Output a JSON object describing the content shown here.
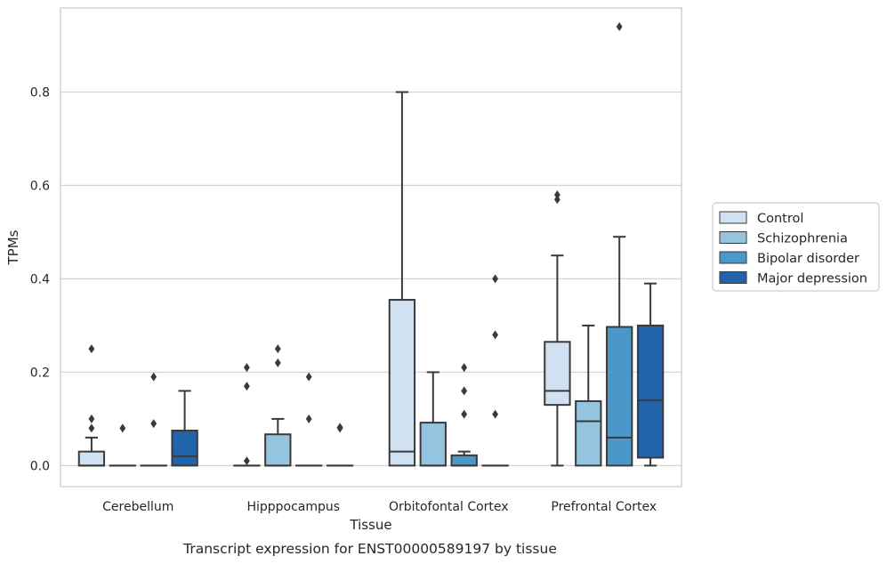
{
  "caption": "Transcript expression for ENST00000589197 by tissue",
  "chart_data": {
    "type": "box",
    "xlabel": "Tissue",
    "ylabel": "TPMs",
    "ylim": [
      -0.045,
      0.98
    ],
    "yticks": [
      0.0,
      0.2,
      0.4,
      0.6,
      0.8
    ],
    "ytick_labels": [
      "0.0",
      "0.2",
      "0.4",
      "0.6",
      "0.8"
    ],
    "grid": "horizontal",
    "legend_position": "right",
    "categories": [
      "Cerebellum",
      "Hipppocampus",
      "Orbitofontal Cortex",
      "Prefrontal Cortex"
    ],
    "series": [
      {
        "name": "Control",
        "color": "#d0e1f2",
        "boxes": [
          {
            "min": 0,
            "q1": 0,
            "median": 0,
            "q3": 0.03,
            "max": 0.06,
            "outliers": [
              0.08,
              0.1,
              0.25
            ]
          },
          {
            "min": 0,
            "q1": 0,
            "median": 0,
            "q3": 0,
            "max": 0,
            "outliers": [
              0.01,
              0.17,
              0.21
            ]
          },
          {
            "min": 0,
            "q1": 0,
            "median": 0.03,
            "q3": 0.355,
            "max": 0.8,
            "outliers": []
          },
          {
            "min": 0,
            "q1": 0.13,
            "median": 0.16,
            "q3": 0.265,
            "max": 0.45,
            "outliers": [
              0.57,
              0.58
            ]
          }
        ]
      },
      {
        "name": "Schizophrenia",
        "color": "#94c4df",
        "boxes": [
          {
            "min": 0,
            "q1": 0,
            "median": 0,
            "q3": 0,
            "max": 0,
            "outliers": [
              0.08
            ]
          },
          {
            "min": 0,
            "q1": 0,
            "median": 0,
            "q3": 0.067,
            "max": 0.1,
            "outliers": [
              0.22,
              0.25
            ]
          },
          {
            "min": 0,
            "q1": 0,
            "median": 0,
            "q3": 0.092,
            "max": 0.2,
            "outliers": []
          },
          {
            "min": 0,
            "q1": 0,
            "median": 0.095,
            "q3": 0.138,
            "max": 0.3,
            "outliers": []
          }
        ]
      },
      {
        "name": "Bipolar disorder",
        "color": "#4a98c9",
        "boxes": [
          {
            "min": 0,
            "q1": 0,
            "median": 0,
            "q3": 0,
            "max": 0,
            "outliers": [
              0.09,
              0.19
            ]
          },
          {
            "min": 0,
            "q1": 0,
            "median": 0,
            "q3": 0,
            "max": 0,
            "outliers": [
              0.1,
              0.19
            ]
          },
          {
            "min": 0,
            "q1": 0,
            "median": 0,
            "q3": 0.022,
            "max": 0.03,
            "outliers": [
              0.11,
              0.16,
              0.21
            ]
          },
          {
            "min": 0,
            "q1": 0,
            "median": 0.06,
            "q3": 0.297,
            "max": 0.49,
            "outliers": [
              0.94
            ]
          }
        ]
      },
      {
        "name": "Major depression",
        "color": "#2164ab",
        "boxes": [
          {
            "min": 0,
            "q1": 0,
            "median": 0.02,
            "q3": 0.075,
            "max": 0.16,
            "outliers": []
          },
          {
            "min": 0,
            "q1": 0,
            "median": 0,
            "q3": 0,
            "max": 0,
            "outliers": [
              0.08,
              0.082
            ]
          },
          {
            "min": 0,
            "q1": 0,
            "median": 0,
            "q3": 0,
            "max": 0,
            "outliers": [
              0.11,
              0.28,
              0.4
            ]
          },
          {
            "min": 0,
            "q1": 0.017,
            "median": 0.14,
            "q3": 0.3,
            "max": 0.39,
            "outliers": []
          }
        ]
      }
    ]
  }
}
